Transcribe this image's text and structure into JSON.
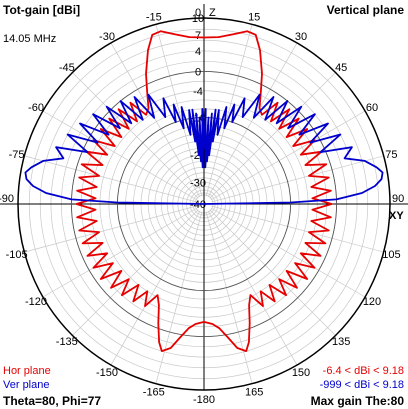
{
  "header": {
    "title": "Tot-gain [dBi]",
    "plane": "Vertical plane",
    "frequency": "14.05 MHz"
  },
  "footer": {
    "hor_legend": "Hor plane",
    "ver_legend": "Ver plane",
    "hor_range": "-6.4 < dBi < 9.18",
    "ver_range": "-999 < dBi < 9.18",
    "theta_phi": "Theta=80, Phi=77",
    "max_gain": "Max gain The:80"
  },
  "chart_data": {
    "type": "polar",
    "angle_ticks": [
      {
        "deg": 0,
        "label": "0"
      },
      {
        "deg": 15,
        "label": "15"
      },
      {
        "deg": 30,
        "label": "30"
      },
      {
        "deg": 45,
        "label": "45"
      },
      {
        "deg": 60,
        "label": "60"
      },
      {
        "deg": 75,
        "label": "75"
      },
      {
        "deg": 90,
        "label": "90"
      },
      {
        "deg": 105,
        "label": "105"
      },
      {
        "deg": 120,
        "label": "120"
      },
      {
        "deg": 135,
        "label": "135"
      },
      {
        "deg": 150,
        "label": "150"
      },
      {
        "deg": 165,
        "label": "165"
      },
      {
        "deg": -15,
        "label": "-15"
      },
      {
        "deg": -30,
        "label": "-30"
      },
      {
        "deg": -45,
        "label": "-45"
      },
      {
        "deg": -60,
        "label": "-60"
      },
      {
        "deg": -75,
        "label": "-75"
      },
      {
        "deg": -90,
        "label": "-90"
      },
      {
        "deg": -105,
        "label": "-105"
      },
      {
        "deg": -120,
        "label": "-120"
      },
      {
        "deg": -135,
        "label": "-135"
      },
      {
        "deg": -150,
        "label": "-150"
      },
      {
        "deg": -165,
        "label": "-165"
      },
      {
        "deg": -180,
        "label": "-180"
      }
    ],
    "axis_labels": {
      "top": "Z",
      "right": "XY"
    },
    "radial_ticks": [
      "10",
      "7",
      "4",
      "0",
      "-4",
      "-10",
      "-20",
      "-30",
      "-40"
    ],
    "radial_range": [
      -40,
      10
    ],
    "series": [
      {
        "name": "Hor plane",
        "color": "#e60000",
        "points": [
          [
            0,
            6.5
          ],
          [
            5,
            6.7
          ],
          [
            10,
            7.6
          ],
          [
            14,
            8.6
          ],
          [
            17,
            8.4
          ],
          [
            20,
            6.0
          ],
          [
            24,
            2.0
          ],
          [
            27,
            -1.5
          ],
          [
            30,
            -4.5
          ],
          [
            33,
            -5.5
          ],
          [
            36,
            -1.5
          ],
          [
            39,
            -5.5
          ],
          [
            42,
            -1.0
          ],
          [
            45,
            -5.5
          ],
          [
            48,
            -1.0
          ],
          [
            51,
            -5.5
          ],
          [
            54,
            -1.0
          ],
          [
            57,
            -5.5
          ],
          [
            60,
            -1.0
          ],
          [
            63,
            -5.0
          ],
          [
            66,
            -0.8
          ],
          [
            69,
            -5.0
          ],
          [
            72,
            -0.8
          ],
          [
            75,
            -5.0
          ],
          [
            78,
            -1.0
          ],
          [
            81,
            -5.0
          ],
          [
            84,
            -1.0
          ],
          [
            87,
            -5.0
          ],
          [
            90,
            -1.0
          ],
          [
            93,
            -5.0
          ],
          [
            96,
            -1.0
          ],
          [
            99,
            -5.0
          ],
          [
            102,
            -1.0
          ],
          [
            105,
            -5.0
          ],
          [
            108,
            -1.0
          ],
          [
            111,
            -5.0
          ],
          [
            114,
            -1.0
          ],
          [
            117,
            -5.0
          ],
          [
            120,
            -1.0
          ],
          [
            123,
            -5.0
          ],
          [
            126,
            -1.0
          ],
          [
            129,
            -5.5
          ],
          [
            132,
            -1.5
          ],
          [
            135,
            -5.5
          ],
          [
            138,
            -2.0
          ],
          [
            141,
            -6.0
          ],
          [
            144,
            -2.5
          ],
          [
            147,
            -6.0
          ],
          [
            150,
            -3.0
          ],
          [
            153,
            -6.4
          ],
          [
            156,
            -4.5
          ],
          [
            159,
            -1.0
          ],
          [
            162,
            2.5
          ],
          [
            164,
            4.0
          ],
          [
            167,
            3.0
          ],
          [
            170,
            0.5
          ],
          [
            173,
            -1.5
          ],
          [
            176,
            -2.5
          ],
          [
            180,
            -3.0
          ]
        ]
      },
      {
        "name": "Ver plane",
        "color": "#0000cc",
        "points": [
          [
            0,
            -18
          ],
          [
            1,
            -8
          ],
          [
            2,
            -24
          ],
          [
            3,
            -10
          ],
          [
            4,
            -22
          ],
          [
            5,
            -9
          ],
          [
            6,
            -20
          ],
          [
            7,
            -8
          ],
          [
            8,
            -16
          ],
          [
            9,
            -8
          ],
          [
            11,
            -14
          ],
          [
            13,
            -7
          ],
          [
            15,
            -12
          ],
          [
            17,
            -6
          ],
          [
            19,
            -10
          ],
          [
            21,
            -4
          ],
          [
            24,
            -8
          ],
          [
            27,
            -2
          ],
          [
            30,
            -7
          ],
          [
            33,
            -1
          ],
          [
            36,
            -6
          ],
          [
            39,
            0
          ],
          [
            42,
            -5
          ],
          [
            45,
            1
          ],
          [
            48,
            -4
          ],
          [
            51,
            2
          ],
          [
            54,
            -3
          ],
          [
            57,
            3
          ],
          [
            60,
            -2
          ],
          [
            63,
            4
          ],
          [
            66,
            -1
          ],
          [
            69,
            5
          ],
          [
            72,
            3
          ],
          [
            75,
            6.5
          ],
          [
            78,
            8.3
          ],
          [
            80,
            9.18
          ],
          [
            82,
            8.8
          ],
          [
            84,
            7.5
          ],
          [
            86,
            5.0
          ],
          [
            88,
            0.0
          ],
          [
            89,
            -10
          ],
          [
            90,
            -999
          ]
        ]
      }
    ]
  }
}
